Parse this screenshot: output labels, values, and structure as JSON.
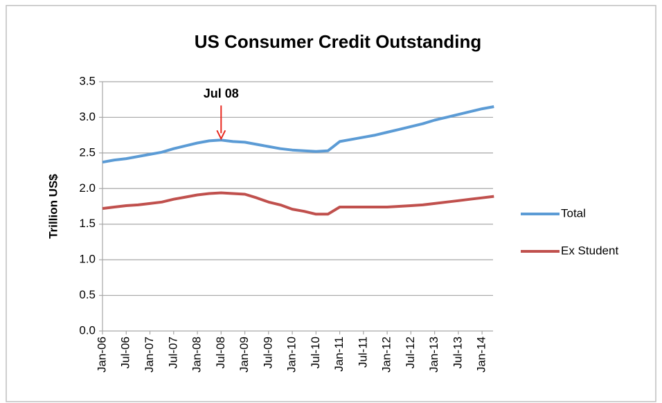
{
  "chart_data": {
    "type": "line",
    "title": "US Consumer Credit Outstanding",
    "y_label": "Trillion US$",
    "categories": [
      "Jan-06",
      null,
      "Jul-06",
      null,
      "Jan-07",
      null,
      "Jul-07",
      null,
      "Jan-08",
      null,
      "Jul-08",
      null,
      "Jan-09",
      null,
      "Jul-09",
      null,
      "Jan-10",
      null,
      "Jul-10",
      null,
      "Jan-11",
      null,
      "Jul-11",
      null,
      "Jan-12",
      null,
      "Jul-12",
      null,
      "Jan-13",
      null,
      "Jul-13",
      null,
      "Jan-14",
      null
    ],
    "series": [
      {
        "name": "Total",
        "color": "#5b9bd5",
        "values": [
          2.37,
          2.4,
          2.42,
          2.45,
          2.48,
          2.51,
          2.56,
          2.6,
          2.64,
          2.67,
          2.68,
          2.66,
          2.65,
          2.62,
          2.59,
          2.56,
          2.54,
          2.53,
          2.52,
          2.53,
          2.66,
          2.69,
          2.72,
          2.75,
          2.79,
          2.83,
          2.87,
          2.91,
          2.96,
          3.0,
          3.04,
          3.08,
          3.12,
          3.15
        ]
      },
      {
        "name": "Ex Student",
        "color": "#c0504d",
        "values": [
          1.72,
          1.74,
          1.76,
          1.77,
          1.79,
          1.81,
          1.85,
          1.88,
          1.91,
          1.93,
          1.94,
          1.93,
          1.92,
          1.87,
          1.81,
          1.77,
          1.71,
          1.68,
          1.64,
          1.64,
          1.74,
          1.74,
          1.74,
          1.74,
          1.74,
          1.75,
          1.76,
          1.77,
          1.79,
          1.81,
          1.83,
          1.85,
          1.87,
          1.89
        ]
      }
    ],
    "ylim": [
      0,
      3.5
    ],
    "yticks": [
      {
        "value": 0,
        "label": "0.0"
      },
      {
        "value": 0.5,
        "label": "0.5"
      },
      {
        "value": 1,
        "label": "1.0"
      },
      {
        "value": 1.5,
        "label": "1.5"
      },
      {
        "value": 2,
        "label": "2.0"
      },
      {
        "value": 2.5,
        "label": "2.5"
      },
      {
        "value": 3,
        "label": "3.0"
      },
      {
        "value": 3.5,
        "label": "3.5"
      }
    ],
    "grid": true,
    "legend": "right",
    "annotations": [
      {
        "text": "Jul 08",
        "x": "Jul-08",
        "color": "#e8281e"
      }
    ]
  }
}
